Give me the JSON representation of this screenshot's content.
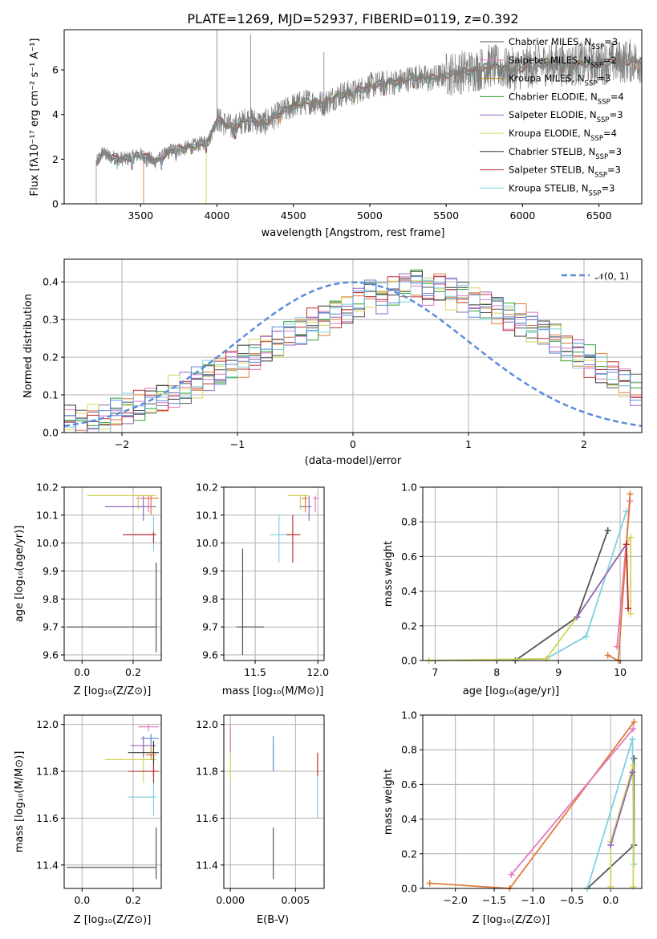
{
  "figure_title": "PLATE=1269, MJD=52937, FIBERID=0119, z=0.392",
  "colors": {
    "Chabrier MILES": "#555555",
    "Salpeter MILES": "#e377c2",
    "Kroupa MILES": "#b8860b",
    "Chabrier ELODIE": "#2ca02c",
    "Salpeter ELODIE": "#9467bd",
    "Kroupa ELODIE": "#d4d45a",
    "Chabrier STELIB": "#333333",
    "Salpeter STELIB": "#c03030",
    "Kroupa STELIB": "#80d0e0",
    "gaussian": "#5b8cdb",
    "grid": "#b0b0b0",
    "orange_model": "#e07b39",
    "lime_model": "#c8e040"
  },
  "chart_data": [
    {
      "id": "spectrum",
      "type": "line",
      "title": "PLATE=1269, MJD=52937, FIBERID=0119, z=0.392",
      "xlabel": "wavelength [Angstrom, rest frame]",
      "ylabel": "Flux [f$_\\lambda$10$^{-17}$ erg cm$^{-2}$ s$^{-1}$ A$^{-1}$]",
      "ylabel_display": "Flux [fλ10⁻¹⁷ erg cm⁻² s⁻¹ A⁻¹]",
      "xlim": [
        3000,
        6780
      ],
      "ylim": [
        0,
        7.8
      ],
      "xticks": [
        "3500",
        "4000",
        "4500",
        "5000",
        "5500",
        "6000",
        "6500"
      ],
      "yticks": [
        "0",
        "2",
        "4",
        "6"
      ],
      "legend_position": "top-right",
      "legend": [
        {
          "name": "Chabrier MILES",
          "sub": "SSP",
          "value": "3",
          "color": "#555555"
        },
        {
          "name": "Salpeter MILES",
          "sub": "SSP",
          "value": "2",
          "color": "#e377c2"
        },
        {
          "name": "Kroupa MILES",
          "sub": "SSP",
          "value": "3",
          "color": "#b8860b"
        },
        {
          "name": "Chabrier ELODIE",
          "sub": "SSP",
          "value": "4",
          "color": "#2ca02c"
        },
        {
          "name": "Salpeter ELODIE",
          "sub": "SSP",
          "value": "3",
          "color": "#9467bd"
        },
        {
          "name": "Kroupa ELODIE",
          "sub": "SSP",
          "value": "4",
          "color": "#d4d45a"
        },
        {
          "name": "Chabrier STELIB",
          "sub": "SSP",
          "value": "3",
          "color": "#333333"
        },
        {
          "name": "Salpeter STELIB",
          "sub": "SSP",
          "value": "3",
          "color": "#c03030"
        },
        {
          "name": "Kroupa STELIB",
          "sub": "SSP",
          "value": "3",
          "color": "#80d0e0"
        }
      ],
      "continuum": {
        "x": [
          3210,
          3250,
          3300,
          3400,
          3500,
          3600,
          3700,
          3800,
          3900,
          3950,
          4000,
          4100,
          4200,
          4300,
          4400,
          4500,
          4600,
          4700,
          4800,
          4900,
          5000,
          5100,
          5200,
          5300,
          5400,
          5500,
          5600,
          5700,
          5800,
          5900,
          6000,
          6100,
          6200,
          6300,
          6400,
          6500,
          6700
        ],
        "y": [
          1.8,
          2.3,
          2.1,
          2.0,
          2.2,
          1.9,
          2.4,
          2.5,
          2.7,
          2.9,
          3.8,
          3.4,
          3.8,
          3.6,
          4.0,
          4.4,
          4.6,
          4.5,
          4.9,
          5.0,
          5.3,
          5.4,
          5.5,
          5.7,
          5.6,
          5.8,
          5.9,
          6.0,
          6.2,
          6.0,
          6.1,
          6.2,
          6.3,
          6.2,
          6.3,
          6.3,
          6.4
        ]
      },
      "spikes": [
        {
          "x": 4000,
          "y": 7.8
        },
        {
          "x": 4220,
          "y": 7.6
        },
        {
          "x": 4700,
          "y": 6.8
        }
      ]
    },
    {
      "id": "residual_hist",
      "type": "line",
      "xlabel": "(data-model)/error",
      "ylabel": "Normed distribution",
      "xlim": [
        -2.5,
        2.5
      ],
      "ylim": [
        0,
        0.46
      ],
      "xticks": [
        "−2",
        "−1",
        "0",
        "1",
        "2"
      ],
      "yticks": [
        "0.0",
        "0.1",
        "0.2",
        "0.3",
        "0.4"
      ],
      "grid": true,
      "legend_position": "top-right",
      "gaussian_label": "𝒩(0, 1)",
      "bin_width": 0.1,
      "bin_start": -2.5,
      "hist_values": [
        0.03,
        0.02,
        0.04,
        0.03,
        0.05,
        0.06,
        0.07,
        0.08,
        0.09,
        0.11,
        0.12,
        0.13,
        0.15,
        0.16,
        0.18,
        0.19,
        0.21,
        0.23,
        0.24,
        0.26,
        0.27,
        0.29,
        0.3,
        0.32,
        0.33,
        0.35,
        0.37,
        0.36,
        0.38,
        0.39,
        0.4,
        0.38,
        0.39,
        0.37,
        0.36,
        0.35,
        0.34,
        0.33,
        0.31,
        0.3,
        0.28,
        0.26,
        0.25,
        0.23,
        0.21,
        0.19,
        0.17,
        0.15,
        0.13,
        0.11
      ]
    },
    {
      "id": "age_vs_Z",
      "type": "scatter",
      "xlabel": "Z [log₁₀(Z/Z⊙)]",
      "ylabel": "age  [log₁₀(age/yr)]",
      "xlim": [
        -0.07,
        0.31
      ],
      "ylim": [
        9.58,
        10.2
      ],
      "xticks": [
        "0.0",
        "0.2"
      ],
      "yticks": [
        "9.6",
        "9.7",
        "9.8",
        "9.9",
        "10.0",
        "10.1",
        "10.2"
      ]
    },
    {
      "id": "age_vs_mass",
      "type": "scatter",
      "xlabel": "mass [log₁₀(M/M⊙)]",
      "xlim": [
        11.25,
        12.05
      ],
      "ylim": [
        9.58,
        10.2
      ],
      "xticks": [
        "11.5",
        "12.0"
      ],
      "yticks": [
        "9.6",
        "9.7",
        "9.8",
        "9.9",
        "10.0",
        "10.1",
        "10.2"
      ]
    },
    {
      "id": "weight_vs_age",
      "type": "line",
      "xlabel": "age  [log₁₀(age/yr)]",
      "ylabel": "mass weight",
      "xlim": [
        6.8,
        10.35
      ],
      "ylim": [
        0,
        1.0
      ],
      "xticks": [
        "7",
        "8",
        "9",
        "10"
      ],
      "yticks": [
        "0.0",
        "0.2",
        "0.4",
        "0.6",
        "0.8",
        "1.0"
      ],
      "grid": true
    },
    {
      "id": "mass_vs_Z",
      "type": "scatter",
      "xlabel": "Z [log₁₀(Z/Z⊙)]",
      "ylabel": "mass [log₁₀(M/M⊙)]",
      "xlim": [
        -0.07,
        0.31
      ],
      "ylim": [
        11.3,
        12.04
      ],
      "xticks": [
        "0.0",
        "0.2"
      ],
      "yticks": [
        "11.4",
        "11.6",
        "11.8",
        "12.0"
      ]
    },
    {
      "id": "mass_vs_ebv",
      "type": "scatter",
      "xlabel": "E(B-V)",
      "xlim": [
        -0.0005,
        0.0072
      ],
      "ylim": [
        11.3,
        12.04
      ],
      "xticks": [
        "0.000",
        "0.005"
      ],
      "yticks": [
        "11.4",
        "11.6",
        "11.8",
        "12.0"
      ]
    },
    {
      "id": "weight_vs_Z",
      "type": "line",
      "xlabel": "Z [log₁₀(Z/Z⊙)]",
      "ylabel": "mass weight",
      "xlim": [
        -2.42,
        0.4
      ],
      "ylim": [
        0,
        1.0
      ],
      "xticks": [
        "−2.0",
        "−1.5",
        "−1.0",
        "−0.5",
        "0.0"
      ],
      "yticks": [
        "0.0",
        "0.2",
        "0.4",
        "0.6",
        "0.8",
        "1.0"
      ],
      "grid": true
    }
  ]
}
